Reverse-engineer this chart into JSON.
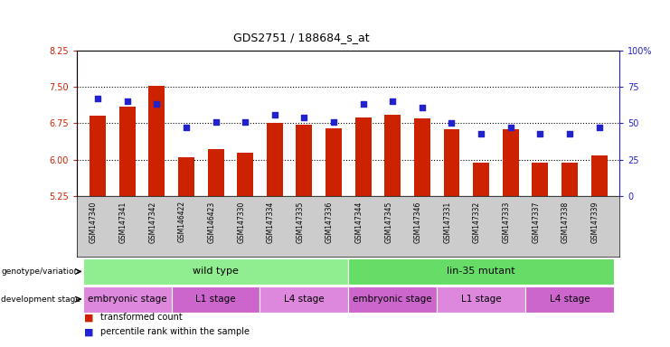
{
  "title": "GDS2751 / 188684_s_at",
  "samples": [
    "GSM147340",
    "GSM147341",
    "GSM147342",
    "GSM146422",
    "GSM146423",
    "GSM147330",
    "GSM147334",
    "GSM147335",
    "GSM147336",
    "GSM147344",
    "GSM147345",
    "GSM147346",
    "GSM147331",
    "GSM147332",
    "GSM147333",
    "GSM147337",
    "GSM147338",
    "GSM147339"
  ],
  "bar_values": [
    6.9,
    7.1,
    7.52,
    6.05,
    6.22,
    6.15,
    6.75,
    6.72,
    6.65,
    6.87,
    6.92,
    6.84,
    6.62,
    5.93,
    6.62,
    5.93,
    5.93,
    6.08
  ],
  "blue_values": [
    67,
    65,
    63,
    47,
    51,
    51,
    56,
    54,
    51,
    63,
    65,
    61,
    50,
    43,
    47,
    43,
    43,
    47
  ],
  "ylim_left": [
    5.25,
    8.25
  ],
  "ylim_right": [
    0,
    100
  ],
  "yticks_left": [
    5.25,
    6.0,
    6.75,
    7.5,
    8.25
  ],
  "yticks_right": [
    0,
    25,
    50,
    75,
    100
  ],
  "bar_color": "#cc2200",
  "blue_color": "#2222cc",
  "grid_lines": [
    6.0,
    6.75,
    7.5
  ],
  "genotype_groups": [
    {
      "label": "wild type",
      "start": 0,
      "end": 9,
      "color": "#90ee90"
    },
    {
      "label": "lin-35 mutant",
      "start": 9,
      "end": 18,
      "color": "#66dd66"
    }
  ],
  "stage_groups": [
    {
      "label": "embryonic stage",
      "start": 0,
      "end": 3,
      "color": "#dd88dd"
    },
    {
      "label": "L1 stage",
      "start": 3,
      "end": 6,
      "color": "#cc66cc"
    },
    {
      "label": "L4 stage",
      "start": 6,
      "end": 9,
      "color": "#dd88dd"
    },
    {
      "label": "embryonic stage",
      "start": 9,
      "end": 12,
      "color": "#cc66cc"
    },
    {
      "label": "L1 stage",
      "start": 12,
      "end": 15,
      "color": "#dd88dd"
    },
    {
      "label": "L4 stage",
      "start": 15,
      "end": 18,
      "color": "#cc66cc"
    }
  ],
  "legend_items": [
    {
      "label": "transformed count",
      "color": "#cc2200"
    },
    {
      "label": "percentile rank within the sample",
      "color": "#2222cc"
    }
  ],
  "fig_width": 7.41,
  "fig_height": 3.84,
  "dpi": 100
}
